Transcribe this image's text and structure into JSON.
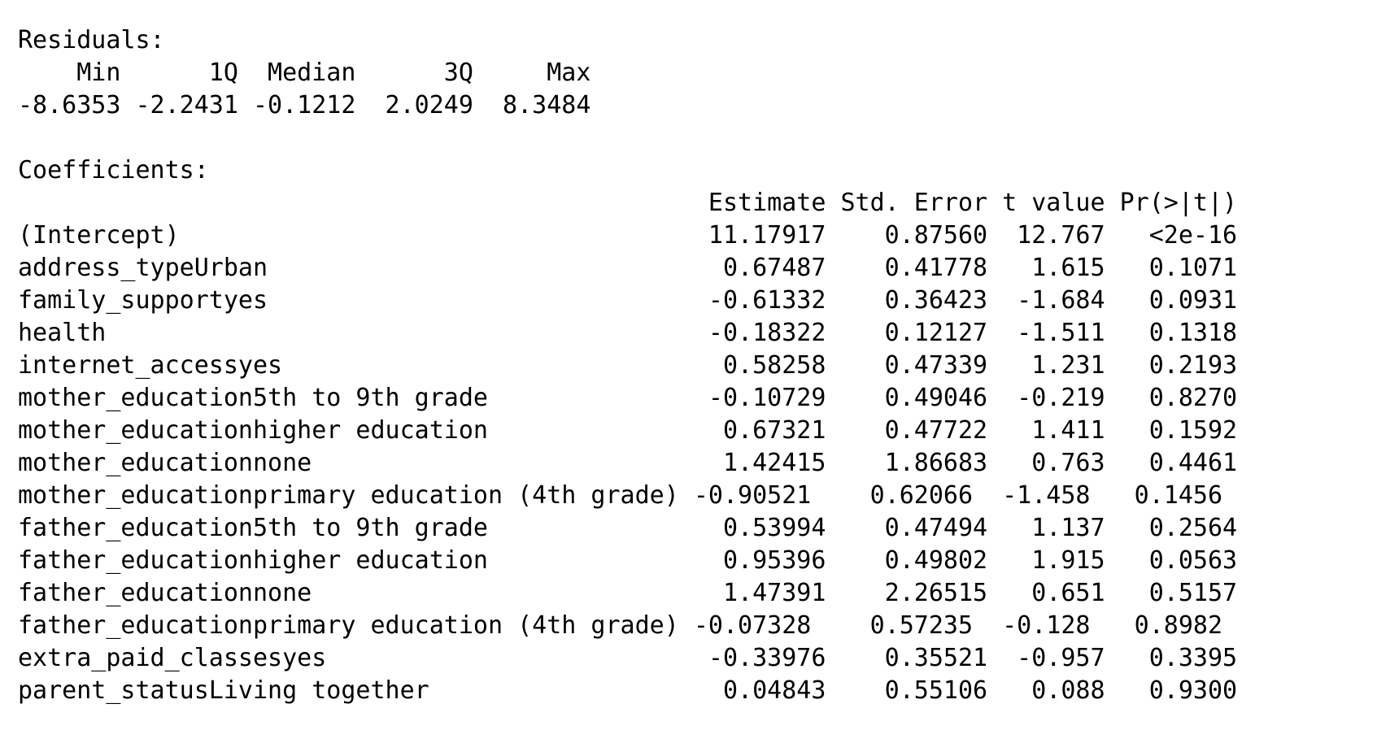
{
  "residuals": {
    "title": "Residuals:",
    "header": "    Min      1Q  Median      3Q     Max",
    "values": "-8.6353 -2.2431 -0.1212  2.0249  8.3484"
  },
  "coefficients": {
    "title": "Coefficients:",
    "header": "                                               Estimate Std. Error t value Pr(>|t|)",
    "rows": [
      "(Intercept)                                    11.17917    0.87560  12.767   <2e-16",
      "address_typeUrban                               0.67487    0.41778   1.615   0.1071",
      "family_supportyes                              -0.61332    0.36423  -1.684   0.0931",
      "health                                         -0.18322    0.12127  -1.511   0.1318",
      "internet_accessyes                              0.58258    0.47339   1.231   0.2193",
      "mother_education5th to 9th grade               -0.10729    0.49046  -0.219   0.8270",
      "mother_educationhigher education                0.67321    0.47722   1.411   0.1592",
      "mother_educationnone                            1.42415    1.86683   0.763   0.4461",
      "mother_educationprimary education (4th grade) -0.90521    0.62066  -1.458   0.1456",
      "father_education5th to 9th grade                0.53994    0.47494   1.137   0.2564",
      "father_educationhigher education                0.95396    0.49802   1.915   0.0563",
      "father_educationnone                            1.47391    2.26515   0.651   0.5157",
      "father_educationprimary education (4th grade) -0.07328    0.57235  -0.128   0.8982",
      "extra_paid_classesyes                          -0.33976    0.35521  -0.957   0.3395",
      "parent_statusLiving together                    0.04843    0.55106   0.088   0.9300"
    ]
  }
}
